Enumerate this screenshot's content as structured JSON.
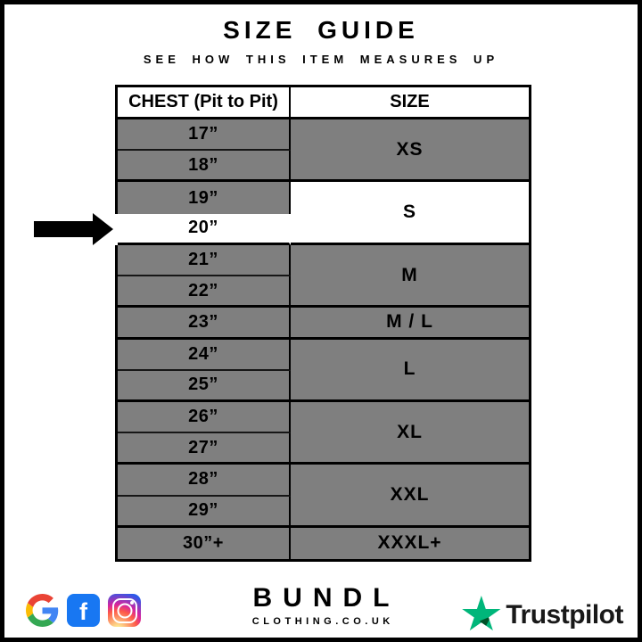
{
  "title": "SIZE GUIDE",
  "subtitle": "SEE HOW THIS ITEM MEASURES UP",
  "table": {
    "headers": {
      "chest": "CHEST (Pit to Pit)",
      "size": "SIZE"
    }
  },
  "chart_data": {
    "type": "table",
    "title": "SIZE GUIDE",
    "subtitle": "SEE HOW THIS ITEM MEASURES UP",
    "columns": [
      "CHEST (Pit to Pit)",
      "SIZE"
    ],
    "rows": [
      [
        "17”",
        "XS"
      ],
      [
        "18”",
        "XS"
      ],
      [
        "19”",
        "S"
      ],
      [
        "20”",
        "S"
      ],
      [
        "21”",
        "M"
      ],
      [
        "22”",
        "M"
      ],
      [
        "23”",
        "M / L"
      ],
      [
        "24”",
        "L"
      ],
      [
        "25”",
        "L"
      ],
      [
        "26”",
        "XL"
      ],
      [
        "27”",
        "XL"
      ],
      [
        "28”",
        "XXL"
      ],
      [
        "29”",
        "XXL"
      ],
      [
        "30”+",
        "XXXL+"
      ]
    ],
    "highlighted_row": {
      "chest": "20”",
      "size": "S"
    },
    "highlight_marker": "black-left-arrow"
  },
  "colors": {
    "row_gray": "#7f7f7f",
    "highlight_white": "#ffffff",
    "border_black": "#000000",
    "trustpilot_green": "#00B67A",
    "trustpilot_dark_green": "#005128",
    "facebook_blue": "#1877F2",
    "google_red": "#EA4335",
    "google_blue": "#4285F4",
    "google_yellow": "#FBBC05",
    "google_green": "#34A853"
  },
  "footer": {
    "brand": {
      "name": "BUNDL",
      "domain": "CLOTHING.CO.UK"
    },
    "social": {
      "facebook_glyph": "f"
    },
    "trustpilot": {
      "label": "Trustpilot"
    }
  }
}
